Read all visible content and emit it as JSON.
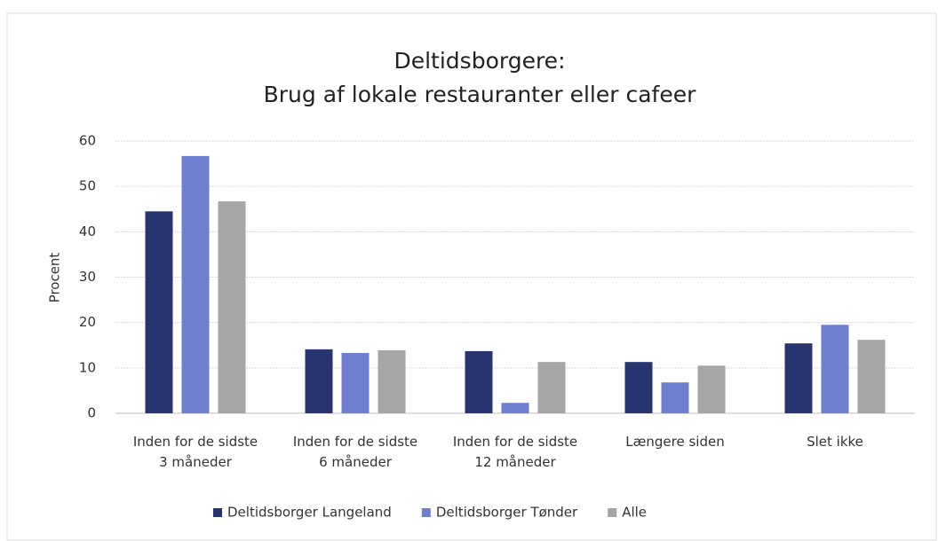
{
  "chart_data": {
    "type": "bar",
    "title": [
      "Deltidsborgere:",
      "Brug af lokale restauranter eller cafeer"
    ],
    "y_label": "Procent",
    "categories": [
      [
        "Inden for de sidste",
        "3 måneder"
      ],
      [
        "Inden for de sidste",
        "6 måneder"
      ],
      [
        "Inden for de sidste",
        "12 måneder"
      ],
      [
        "Længere siden"
      ],
      [
        "Slet ikke"
      ]
    ],
    "series": [
      {
        "name": "Deltidsborger Langeland",
        "color": "#283470",
        "values": [
          44.5,
          14.1,
          13.7,
          11.3,
          15.4
        ]
      },
      {
        "name": "Deltidsborger Tønder",
        "color": "#6f7fd0",
        "values": [
          56.7,
          13.3,
          2.3,
          6.8,
          19.5
        ]
      },
      {
        "name": "Alle",
        "color": "#a6a6a6",
        "values": [
          46.7,
          13.9,
          11.3,
          10.5,
          16.2
        ]
      }
    ],
    "ylim": [
      0,
      60
    ],
    "yticks": [
      0,
      10,
      20,
      30,
      40,
      50,
      60
    ],
    "grid": true,
    "legend": "bottom"
  }
}
